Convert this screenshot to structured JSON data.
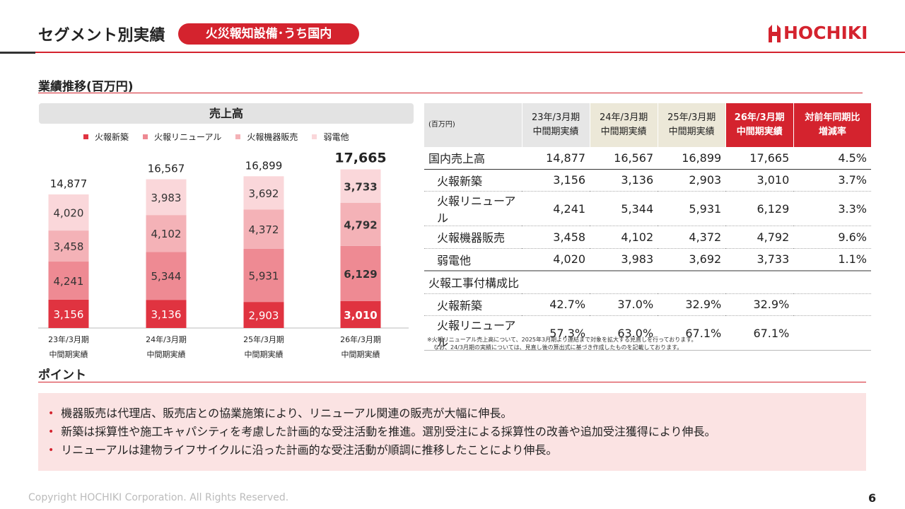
{
  "header": {
    "title": "セグメント別実績",
    "pill": "火災報知設備･うち国内",
    "logo": "HOCHIKI"
  },
  "section_performance": "業績推移(百万円)",
  "section_points": "ポイント",
  "chart_data": {
    "type": "bar",
    "stacked": true,
    "title": "売上高",
    "categories": [
      [
        "23年/3月期",
        "中間期実績"
      ],
      [
        "24年/3月期",
        "中間期実績"
      ],
      [
        "25年/3月期",
        "中間期実績"
      ],
      [
        "26年/3月期",
        "中間期実績"
      ]
    ],
    "series": [
      {
        "name": "火報新築",
        "values": [
          3156,
          3136,
          2903,
          3010
        ],
        "color": "#e03340"
      },
      {
        "name": "火報リニューアル",
        "values": [
          4241,
          5344,
          5931,
          6129
        ],
        "color": "#ee8a93"
      },
      {
        "name": "火報機器販売",
        "values": [
          3458,
          4102,
          4372,
          4792
        ],
        "color": "#f4b2b7"
      },
      {
        "name": "弱電他",
        "values": [
          4020,
          3983,
          3692,
          3733
        ],
        "color": "#fad7da"
      }
    ],
    "totals": [
      14877,
      16567,
      16899,
      17665
    ],
    "segment_labels": [
      [
        "3,156",
        "4,241",
        "3,458",
        "4,020"
      ],
      [
        "3,136",
        "5,344",
        "4,102",
        "3,983"
      ],
      [
        "2,903",
        "5,931",
        "4,372",
        "3,692"
      ],
      [
        "3,010",
        "6,129",
        "4,792",
        "3,733"
      ]
    ],
    "total_labels": [
      "14,877",
      "16,567",
      "16,899",
      "17,665"
    ],
    "highlight_last": true
  },
  "table": {
    "unit": "(百万円)",
    "headers": [
      [
        "23年/3月期",
        "中間期実績"
      ],
      [
        "24年/3月期",
        "中間期実績"
      ],
      [
        "25年/3月期",
        "中間期実績"
      ],
      [
        "26年/3月期",
        "中間期実績"
      ],
      [
        "対前年同期比",
        "増減率"
      ]
    ],
    "sales_rows": [
      {
        "label": "国内売上高",
        "values": [
          "14,877",
          "16,567",
          "16,899",
          "17,665",
          "4.5%"
        ]
      },
      {
        "label": "火報新築",
        "values": [
          "3,156",
          "3,136",
          "2,903",
          "3,010",
          "3.7%"
        ]
      },
      {
        "label": "火報リニューアル",
        "values": [
          "4,241",
          "5,344",
          "5,931",
          "6,129",
          "3.3%"
        ]
      },
      {
        "label": "火報機器販売",
        "values": [
          "3,458",
          "4,102",
          "4,372",
          "4,792",
          "9.6%"
        ]
      },
      {
        "label": "弱電他",
        "values": [
          "4,020",
          "3,983",
          "3,692",
          "3,733",
          "1.1%"
        ]
      }
    ],
    "ratio_title": "火報工事付構成比",
    "ratio_rows": [
      {
        "label": "火報新築",
        "values": [
          "42.7%",
          "37.0%",
          "32.9%",
          "32.9%",
          ""
        ]
      },
      {
        "label": "火報リニューアル",
        "values": [
          "57.3%",
          "63.0%",
          "67.1%",
          "67.1%",
          ""
        ]
      }
    ],
    "notes": [
      "※火報リニューアル売上高について、2025年3月期より連結まで対象を拡大する見直しを行っております。",
      "なお、24/3月期の実績については、見直し後の算出式に基づき作成したものを記載しております。"
    ]
  },
  "points": [
    "機器販売は代理店、販売店との協業施策により、リニューアル関連の販売が大幅に伸長。",
    "新築は採算性や施工キャパシティを考慮した計画的な受注活動を推進。選別受注による採算性の改善や追加受注獲得により伸長。",
    "リニューアルは建物ライフサイクルに沿った計画的な受注活動が順調に推移したことにより伸長。"
  ],
  "footer": {
    "copyright": "Copyright HOCHIKI Corporation. All Rights Reserved.",
    "page": "6"
  }
}
